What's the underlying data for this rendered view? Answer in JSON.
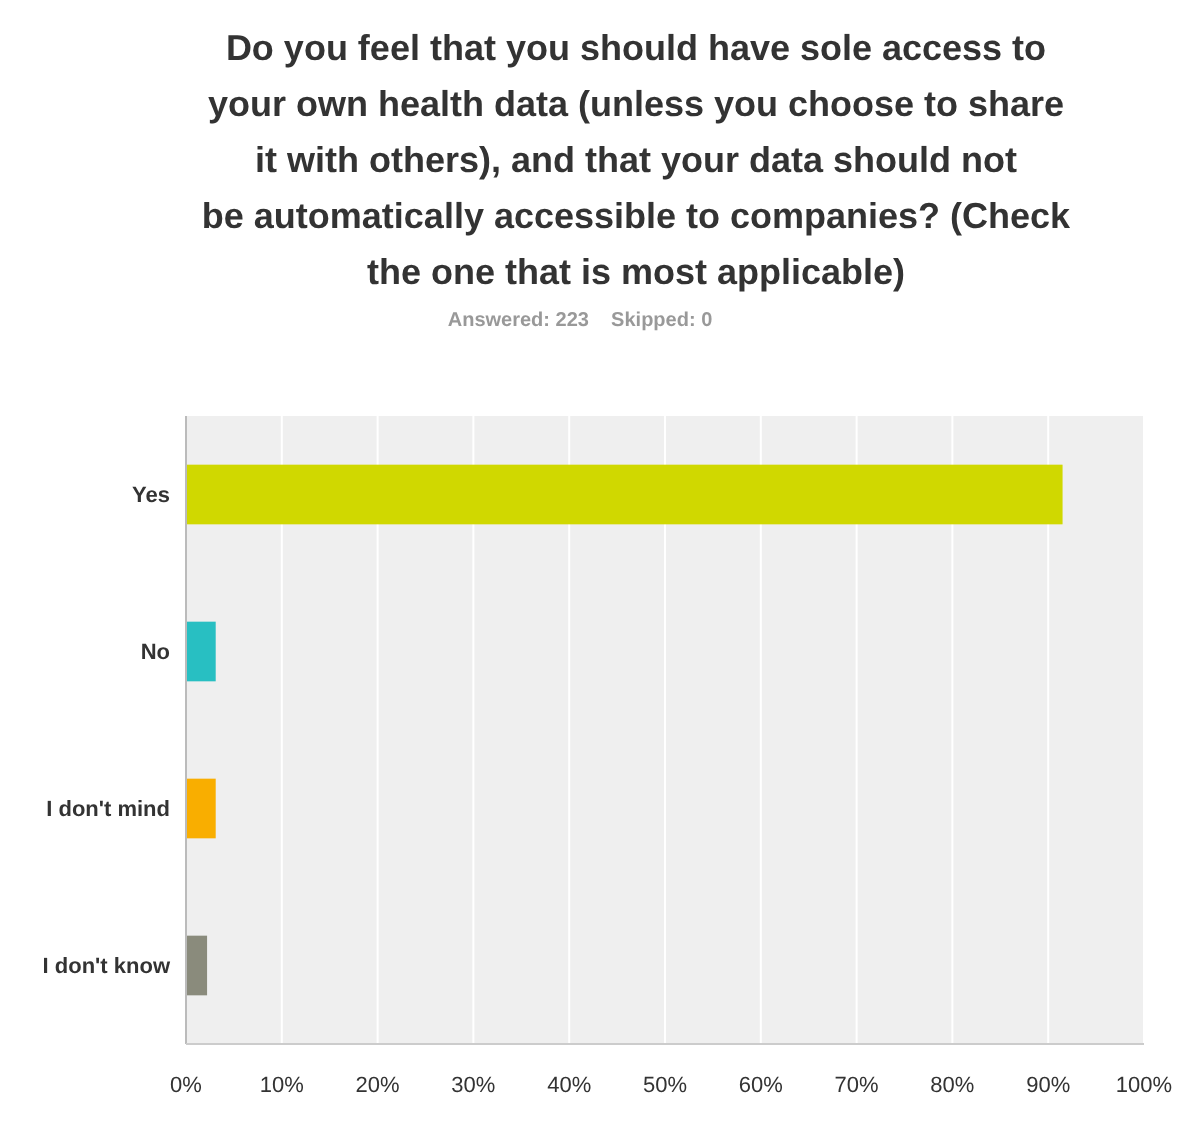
{
  "chart_data": {
    "type": "bar",
    "orientation": "horizontal",
    "title": "Do you feel that you should have sole access to your own health data (unless you choose to share it with others), and that your data should not be automatically accessible to companies? (Check the one that is most applicable)",
    "subtitle": "Answered: 223    Skipped: 0",
    "categories": [
      "Yes",
      "No",
      "I don't mind",
      "I don't know"
    ],
    "values": [
      91.5,
      3.1,
      3.1,
      2.2
    ],
    "colors": [
      "#d0d800",
      "#28bfc2",
      "#f9ae00",
      "#8a8b7c"
    ],
    "xlim": [
      0,
      100
    ],
    "xticks": [
      {
        "value": 0,
        "label": "0%"
      },
      {
        "value": 10,
        "label": "10%"
      },
      {
        "value": 20,
        "label": "20%"
      },
      {
        "value": 30,
        "label": "30%"
      },
      {
        "value": 40,
        "label": "40%"
      },
      {
        "value": 50,
        "label": "50%"
      },
      {
        "value": 60,
        "label": "60%"
      },
      {
        "value": 70,
        "label": "70%"
      },
      {
        "value": 80,
        "label": "80%"
      },
      {
        "value": 90,
        "label": "90%"
      },
      {
        "value": 100,
        "label": "100%"
      }
    ],
    "grid": "x"
  }
}
